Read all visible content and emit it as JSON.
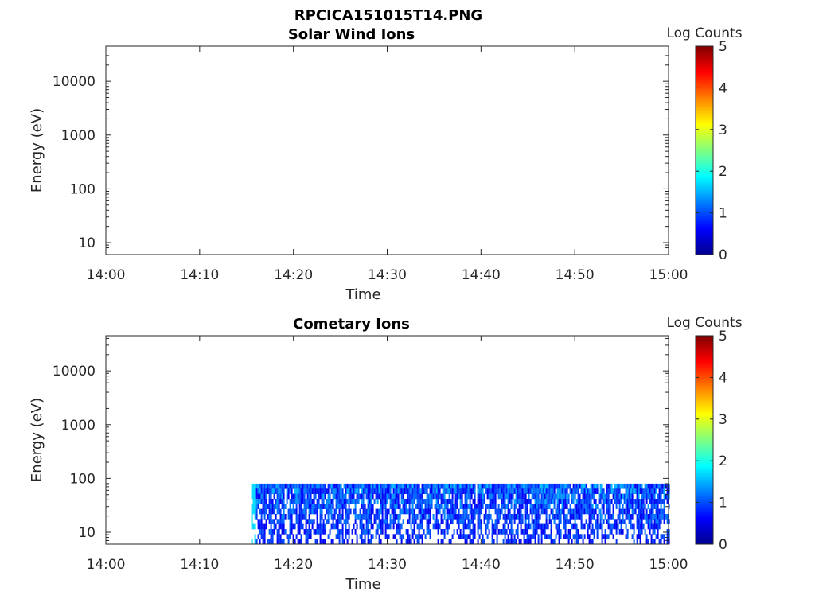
{
  "figure": {
    "suptitle": "RPCICA151015T14.PNG"
  },
  "colorbar": {
    "label": "Log Counts",
    "range": [
      0,
      5
    ],
    "ticks": [
      "0",
      "1",
      "2",
      "3",
      "4",
      "5"
    ],
    "colormap": [
      "#00008f",
      "#0000ff",
      "#00ffff",
      "#ffff00",
      "#ff0000",
      "#800000"
    ]
  },
  "chart_data": [
    {
      "type": "heatmap",
      "title": "Solar Wind Ions",
      "xlabel": "Time",
      "ylabel": "Energy (eV)",
      "yscale": "log",
      "ylim": [
        6,
        45000
      ],
      "x_range": [
        "14:00",
        "15:00"
      ],
      "x_ticks": [
        "14:00",
        "14:10",
        "14:20",
        "14:30",
        "14:40",
        "14:50",
        "15:00"
      ],
      "y_ticks": [
        "10",
        "100",
        "1000",
        "10000"
      ],
      "data_coverage": null
    },
    {
      "type": "heatmap",
      "title": "Cometary Ions",
      "xlabel": "Time",
      "ylabel": "Energy (eV)",
      "yscale": "log",
      "ylim": [
        6,
        45000
      ],
      "x_range": [
        "14:00",
        "15:00"
      ],
      "x_ticks": [
        "14:00",
        "14:10",
        "14:20",
        "14:30",
        "14:40",
        "14:50",
        "15:00"
      ],
      "y_ticks": [
        "10",
        "100",
        "1000",
        "10000"
      ],
      "data_coverage": {
        "time_start": "14:15:30",
        "time_end": "15:00",
        "energy_min": 6,
        "energy_max": 80,
        "log_counts_range": [
          0,
          2
        ]
      }
    }
  ]
}
